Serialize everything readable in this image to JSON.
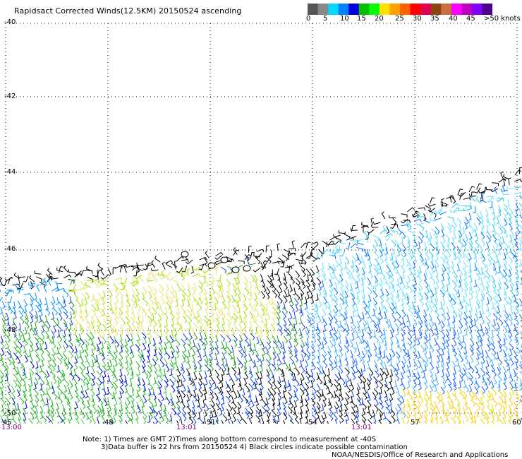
{
  "title": "Rapidsact Corrected Winds(12.5KM) 20150524 ascending",
  "legend": {
    "colors": [
      "#555555",
      "#888888",
      "#00d8ff",
      "#0080ff",
      "#0000e0",
      "#00c000",
      "#00ff00",
      "#ffe000",
      "#ffa000",
      "#ff6000",
      "#ff0000",
      "#e00050",
      "#8b4513",
      "#c87040",
      "#ff00ff",
      "#c000c0",
      "#8000ff",
      "#500090"
    ],
    "labels": [
      "0",
      "5",
      "10",
      "15",
      "20",
      "25",
      "30",
      "35",
      "40",
      "45",
      ">50 knots"
    ]
  },
  "lat_labels": [
    "-40",
    "-42",
    "-44",
    "-46",
    "-48",
    "-50"
  ],
  "lon_labels": [
    "45",
    "48",
    "51",
    "54",
    "57",
    "60"
  ],
  "time_labels": [
    "13:00",
    "13:01",
    "13:01"
  ],
  "notes": [
    "Note: 1) Times are GMT 2)Times along bottom correspond to measurement at -40S",
    "3)Data buffer is 22 hrs from 20150524 4) Black circles indicate possible contamination",
    "NOAA/NESDIS/Office of Research and Applications"
  ]
}
